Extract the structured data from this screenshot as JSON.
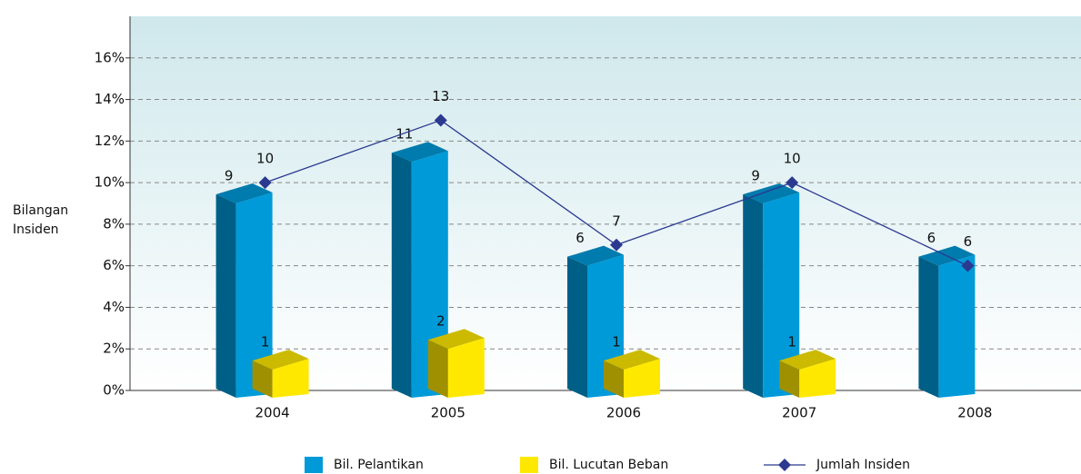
{
  "chart_data": {
    "type": "bar-line",
    "y_label": "Bilangan Insiden",
    "categories": [
      "2004",
      "2005",
      "2006",
      "2007",
      "2008"
    ],
    "series": [
      {
        "name": "Bil. Pelantikan",
        "type": "bar",
        "color": "#009ad8",
        "values": [
          9,
          11,
          6,
          9,
          6
        ]
      },
      {
        "name": "Bil. Lucutan Beban",
        "type": "bar",
        "color": "#ffe800",
        "values": [
          1,
          2,
          1,
          1,
          null
        ]
      },
      {
        "name": "Jumlah Insiden",
        "type": "line",
        "color": "#2b3990",
        "values": [
          10,
          13,
          7,
          10,
          6
        ]
      }
    ],
    "ylim": [
      0,
      18
    ],
    "yticks": [
      {
        "value": 0,
        "label": "0%"
      },
      {
        "value": 2,
        "label": "2%"
      },
      {
        "value": 4,
        "label": "4%"
      },
      {
        "value": 6,
        "label": "6%"
      },
      {
        "value": 8,
        "label": "8%"
      },
      {
        "value": 10,
        "label": "10%"
      },
      {
        "value": 12,
        "label": "12%"
      },
      {
        "value": 14,
        "label": "14%"
      },
      {
        "value": 16,
        "label": "16%"
      }
    ],
    "grid": true,
    "legend": "bottom"
  }
}
